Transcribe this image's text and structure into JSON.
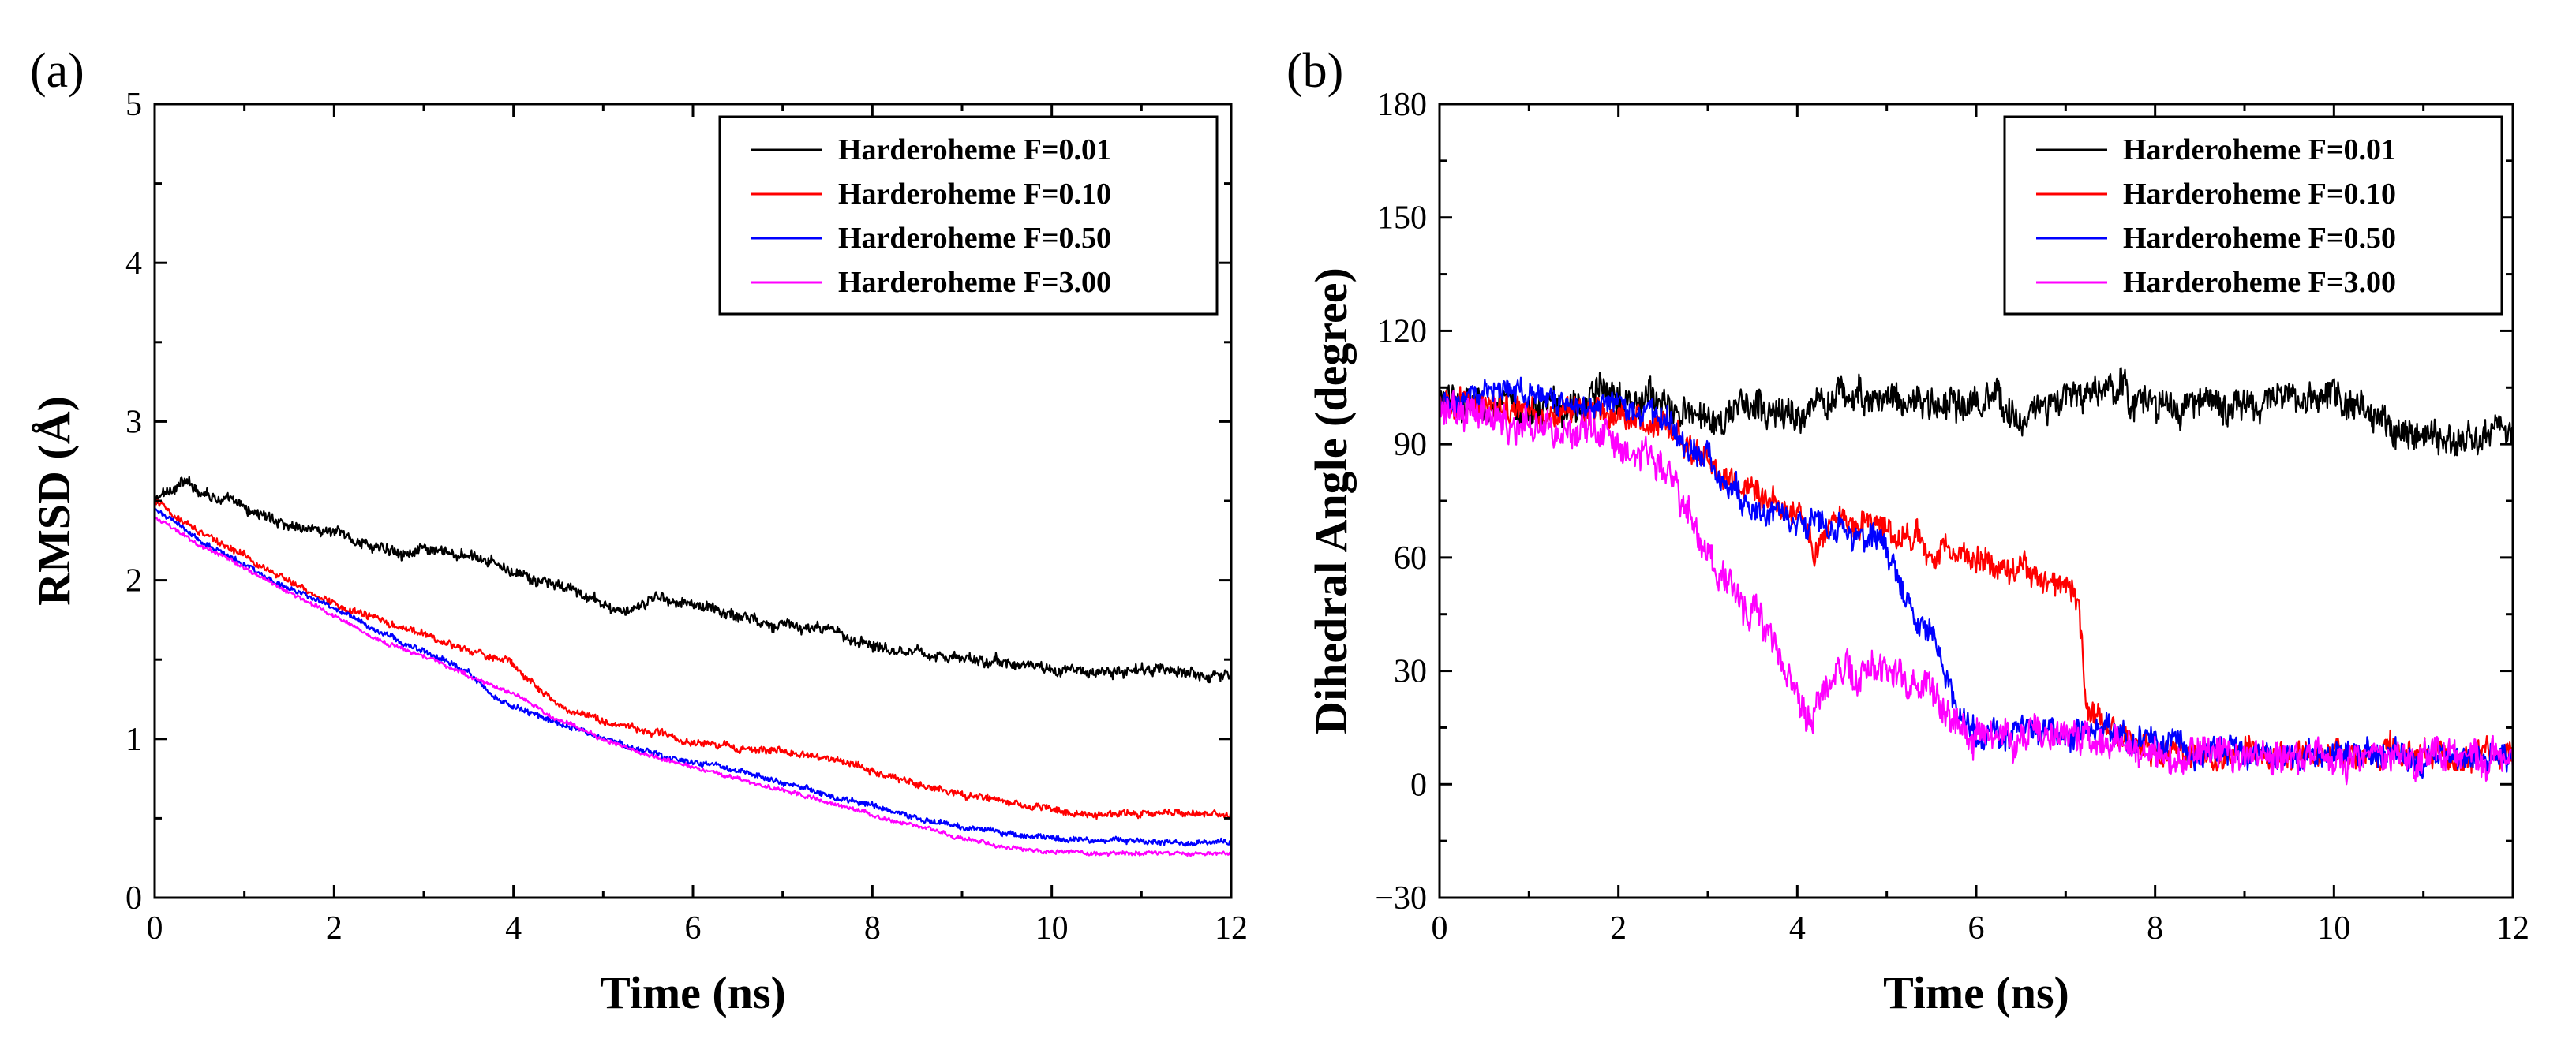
{
  "chart_data": [
    {
      "panel_label": "(a)",
      "type": "line",
      "xlabel": "Time (ns)",
      "ylabel": "RMSD (Å)",
      "xlim": [
        0,
        12
      ],
      "ylim": [
        0,
        5
      ],
      "xticks": [
        0,
        2,
        4,
        6,
        8,
        10,
        12
      ],
      "yticks": [
        0,
        1,
        2,
        3,
        4,
        5
      ],
      "x_tick_labels": [
        "0",
        "2",
        "4",
        "6",
        "8",
        "10",
        "12"
      ],
      "y_tick_labels": [
        "0",
        "1",
        "2",
        "3",
        "4",
        "5"
      ],
      "legend_position": "top-right",
      "noise": [
        0.04,
        0.025,
        0.02,
        0.015
      ],
      "series": [
        {
          "name": "Harderoheme F=0.01",
          "color": "#000000",
          "x": [
            0,
            0.3,
            0.6,
            1,
            1.5,
            2,
            2.5,
            3,
            3.5,
            3.8,
            4.2,
            4.6,
            5,
            5.3,
            5.6,
            6,
            6.5,
            7,
            7.5,
            8,
            8.5,
            9,
            9.5,
            10,
            10.5,
            11,
            11.5,
            12
          ],
          "y": [
            2.5,
            2.62,
            2.55,
            2.45,
            2.35,
            2.3,
            2.2,
            2.18,
            2.15,
            2.1,
            2.0,
            1.95,
            1.85,
            1.78,
            1.9,
            1.85,
            1.78,
            1.72,
            1.68,
            1.6,
            1.55,
            1.5,
            1.48,
            1.44,
            1.42,
            1.43,
            1.42,
            1.4
          ]
        },
        {
          "name": "Harderoheme F=0.10",
          "color": "#ff0000",
          "x": [
            0,
            0.5,
            1,
            1.5,
            2,
            2.5,
            3,
            3.5,
            4,
            4.3,
            4.6,
            5,
            5.5,
            6,
            6.5,
            7,
            7.5,
            8,
            8.5,
            9,
            9.5,
            10,
            10.5,
            11,
            11.5,
            12
          ],
          "y": [
            2.5,
            2.3,
            2.15,
            2.0,
            1.85,
            1.75,
            1.65,
            1.55,
            1.48,
            1.3,
            1.18,
            1.12,
            1.05,
            0.98,
            0.95,
            0.92,
            0.88,
            0.8,
            0.72,
            0.65,
            0.6,
            0.55,
            0.52,
            0.53,
            0.52,
            0.52
          ]
        },
        {
          "name": "Harderoheme F=0.50",
          "color": "#0000ff",
          "x": [
            0,
            0.5,
            1,
            1.5,
            2,
            2.5,
            3,
            3.5,
            3.8,
            4,
            4.5,
            5,
            5.5,
            6,
            6.5,
            7,
            7.5,
            8,
            8.5,
            9,
            9.5,
            10,
            10.5,
            11,
            11.5,
            12
          ],
          "y": [
            2.45,
            2.25,
            2.1,
            1.95,
            1.82,
            1.68,
            1.55,
            1.42,
            1.25,
            1.2,
            1.1,
            1.0,
            0.92,
            0.85,
            0.8,
            0.72,
            0.65,
            0.58,
            0.5,
            0.45,
            0.4,
            0.38,
            0.36,
            0.36,
            0.35,
            0.35
          ]
        },
        {
          "name": "Harderoheme F=3.00",
          "color": "#ff00ff",
          "x": [
            0,
            0.5,
            1,
            1.5,
            2,
            2.5,
            3,
            3.5,
            4,
            4.5,
            5,
            5.5,
            6,
            6.5,
            7,
            7.5,
            8,
            8.5,
            9,
            9.5,
            10,
            10.5,
            11,
            11.5,
            12
          ],
          "y": [
            2.4,
            2.22,
            2.08,
            1.92,
            1.78,
            1.62,
            1.52,
            1.4,
            1.28,
            1.12,
            1.0,
            0.9,
            0.82,
            0.75,
            0.68,
            0.6,
            0.52,
            0.45,
            0.38,
            0.32,
            0.29,
            0.28,
            0.28,
            0.28,
            0.28
          ]
        }
      ]
    },
    {
      "panel_label": "(b)",
      "type": "line",
      "xlabel": "Time (ns)",
      "ylabel": "Dihedral Angle (degree)",
      "xlim": [
        0,
        12
      ],
      "ylim": [
        -30,
        180
      ],
      "xticks": [
        0,
        2,
        4,
        6,
        8,
        10,
        12
      ],
      "yticks": [
        -30,
        0,
        30,
        60,
        90,
        120,
        150,
        180
      ],
      "x_tick_labels": [
        "0",
        "2",
        "4",
        "6",
        "8",
        "10",
        "12"
      ],
      "y_tick_labels": [
        "−30",
        "0",
        "30",
        "60",
        "90",
        "120",
        "150",
        "180"
      ],
      "legend_position": "top-right",
      "noise": [
        5,
        4,
        4,
        5
      ],
      "series": [
        {
          "name": "Harderoheme F=0.01",
          "color": "#000000",
          "x": [
            0,
            0.5,
            1,
            1.5,
            2,
            2.3,
            2.6,
            3,
            3.5,
            4,
            4.5,
            5,
            5.5,
            6,
            6.5,
            7,
            7.5,
            8,
            8.5,
            9,
            9.5,
            10,
            10.5,
            11,
            11.5,
            12
          ],
          "y": [
            100,
            100,
            99,
            100,
            105,
            103,
            98,
            97,
            100,
            97,
            103,
            103,
            100,
            100,
            98,
            101,
            105,
            100,
            100,
            100,
            101,
            102,
            97,
            93,
            92,
            93
          ]
        },
        {
          "name": "Harderoheme F=0.10",
          "color": "#ff0000",
          "x": [
            0,
            1,
            2,
            2.5,
            2.9,
            3.2,
            3.6,
            4,
            4.2,
            4.5,
            5,
            5.5,
            6,
            6.5,
            7,
            7.15,
            7.25,
            7.5,
            8,
            9,
            10,
            11,
            12
          ],
          "y": [
            100,
            99,
            98,
            95,
            88,
            80,
            76,
            72,
            62,
            72,
            68,
            62,
            60,
            57,
            52,
            48,
            18,
            14,
            8,
            8,
            8,
            8,
            8
          ]
        },
        {
          "name": "Harderoheme F=0.50",
          "color": "#0000ff",
          "x": [
            0,
            0.5,
            1,
            1.5,
            2,
            2.5,
            2.8,
            3.2,
            3.6,
            4,
            4.5,
            5,
            5.2,
            5.4,
            5.6,
            5.8,
            6,
            6.5,
            7,
            7.3,
            7.6,
            8,
            9,
            10,
            11,
            12
          ],
          "y": [
            100,
            103,
            104,
            100,
            100,
            97,
            90,
            80,
            72,
            70,
            68,
            62,
            50,
            42,
            35,
            18,
            14,
            14,
            14,
            16,
            12,
            10,
            8,
            8,
            7,
            7
          ]
        },
        {
          "name": "Harderoheme F=3.00",
          "color": "#ff00ff",
          "x": [
            0,
            0.5,
            1,
            1.5,
            2,
            2.5,
            2.8,
            3,
            3.3,
            3.6,
            3.9,
            4.1,
            4.4,
            4.8,
            5.2,
            5.5,
            5.8,
            6.2,
            6.6,
            7,
            7.5,
            8,
            9,
            10,
            11,
            12
          ],
          "y": [
            100,
            97,
            95,
            92,
            90,
            85,
            70,
            60,
            52,
            45,
            30,
            15,
            28,
            30,
            27,
            25,
            15,
            13,
            12,
            12,
            11,
            8,
            7,
            7,
            7,
            7
          ]
        }
      ]
    }
  ]
}
